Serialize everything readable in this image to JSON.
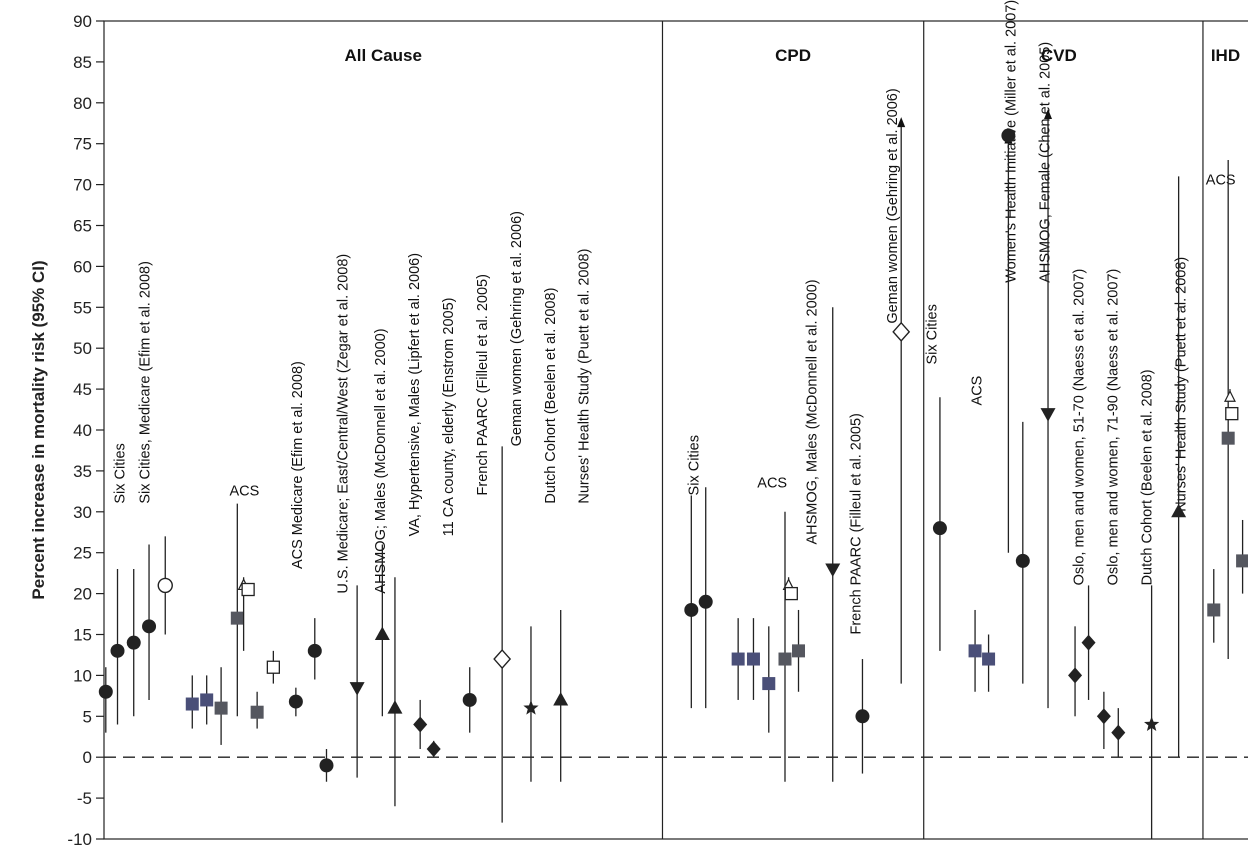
{
  "chart_data": {
    "type": "scatter",
    "title": "",
    "xlabel": "",
    "ylabel": "Percent increase in mortality risk (95% CI)",
    "ylim": [
      -10,
      90
    ],
    "yticks": [
      90,
      85,
      80,
      75,
      70,
      65,
      60,
      55,
      50,
      45,
      40,
      35,
      30,
      25,
      20,
      15,
      10,
      5,
      0,
      -5,
      -10
    ],
    "ytick_labels": [
      "90",
      "85",
      "80",
      "75",
      "70",
      "65",
      "60",
      "55",
      "50",
      "45",
      "40",
      "35",
      "30",
      "25",
      "20",
      "15",
      "10",
      "5",
      "0",
      "-5",
      "-10"
    ],
    "reference_line": 0,
    "grid": false,
    "panels": [
      {
        "name": "All Cause",
        "x_start": 0,
        "x_end": 62,
        "title_x": 31
      },
      {
        "name": "CPD",
        "x_start": 62,
        "x_end": 91,
        "title_x": 76.5
      },
      {
        "name": "CVD",
        "x_start": 91,
        "x_end": 122,
        "title_x": 106
      },
      {
        "name": "IHD",
        "x_start": 122,
        "x_end": 127,
        "title_x": 124.5
      }
    ],
    "points": [
      {
        "x": 1.5,
        "y": 13,
        "lo": 4,
        "hi": 23,
        "marker": "circle"
      },
      {
        "x": 3.3,
        "y": 14,
        "lo": 5,
        "hi": 23,
        "marker": "circle"
      },
      {
        "x": 5.0,
        "y": 16,
        "lo": 7,
        "hi": 26,
        "marker": "circle"
      },
      {
        "x": 6.8,
        "y": 21,
        "lo": 15,
        "hi": 27,
        "marker": "open-circle"
      },
      {
        "x": 9.8,
        "y": 6.5,
        "lo": 3.5,
        "hi": 10,
        "marker": "square-blue"
      },
      {
        "x": 11.4,
        "y": 7,
        "lo": 4,
        "hi": 10,
        "marker": "square-blue"
      },
      {
        "x": 13.0,
        "y": 6,
        "lo": 1.5,
        "hi": 11,
        "marker": "square"
      },
      {
        "x": 14.8,
        "y": 17,
        "lo": 5,
        "hi": 31,
        "marker": "square"
      },
      {
        "x": 15.5,
        "y": 21,
        "lo": 13,
        "hi": 22,
        "marker": "open-triangle"
      },
      {
        "x": 16.0,
        "y": 20.5,
        "lo": 20.5,
        "hi": 20.5,
        "marker": "open-square"
      },
      {
        "x": 17.0,
        "y": 5.5,
        "lo": 3.5,
        "hi": 8,
        "marker": "square"
      },
      {
        "x": 18.8,
        "y": 11,
        "lo": 9,
        "hi": 13,
        "marker": "open-square"
      },
      {
        "x": 21.3,
        "y": 6.8,
        "lo": 5,
        "hi": 8.5,
        "marker": "circle"
      },
      {
        "x": 23.4,
        "y": 13,
        "lo": 9.5,
        "hi": 17,
        "marker": "circle"
      },
      {
        "x": 24.7,
        "y": -1,
        "lo": -3,
        "hi": 1,
        "marker": "circle"
      },
      {
        "x": 28.1,
        "y": 8.5,
        "lo": -2.5,
        "hi": 21,
        "marker": "triangle-down"
      },
      {
        "x": 30.9,
        "y": 15,
        "lo": 5,
        "hi": 26,
        "marker": "triangle"
      },
      {
        "x": 32.3,
        "y": 6,
        "lo": -6,
        "hi": 22,
        "marker": "triangle"
      },
      {
        "x": 35.1,
        "y": 4,
        "lo": 1,
        "hi": 7,
        "marker": "diamond"
      },
      {
        "x": 36.6,
        "y": 1,
        "lo": 0,
        "hi": 2,
        "marker": "diamond"
      },
      {
        "x": 40.6,
        "y": 7,
        "lo": 3,
        "hi": 11,
        "marker": "circle"
      },
      {
        "x": 44.2,
        "y": 12,
        "lo": -8,
        "hi": 38,
        "marker": "open-diamond"
      },
      {
        "x": 47.4,
        "y": 6,
        "lo": -3,
        "hi": 16,
        "marker": "star"
      },
      {
        "x": 50.7,
        "y": 7,
        "lo": -3,
        "hi": 18,
        "marker": "triangle"
      },
      {
        "x": 65.2,
        "y": 18,
        "lo": 6,
        "hi": 32,
        "marker": "circle"
      },
      {
        "x": 66.8,
        "y": 19,
        "lo": 6,
        "hi": 33,
        "marker": "circle"
      },
      {
        "x": 70.4,
        "y": 12,
        "lo": 7,
        "hi": 17,
        "marker": "square-blue"
      },
      {
        "x": 72.1,
        "y": 12,
        "lo": 7,
        "hi": 17,
        "marker": "square-blue"
      },
      {
        "x": 73.8,
        "y": 9,
        "lo": 3,
        "hi": 16,
        "marker": "square-blue"
      },
      {
        "x": 75.6,
        "y": 12,
        "lo": -3,
        "hi": 30,
        "marker": "square"
      },
      {
        "x": 76.0,
        "y": 21,
        "lo": 20.5,
        "hi": 22,
        "marker": "open-triangle"
      },
      {
        "x": 76.3,
        "y": 20,
        "lo": 20,
        "hi": 20,
        "marker": "open-square"
      },
      {
        "x": 77.1,
        "y": 13,
        "lo": 8,
        "hi": 18,
        "marker": "square"
      },
      {
        "x": 80.9,
        "y": 23,
        "lo": -3,
        "hi": 55,
        "marker": "triangle-down"
      },
      {
        "x": 84.2,
        "y": 5,
        "lo": -2,
        "hi": 12,
        "marker": "circle"
      },
      {
        "x": 88.5,
        "y": 52,
        "lo": 9,
        "hi": 78,
        "marker": "open-diamond",
        "arrow_up": true
      },
      {
        "x": 92.8,
        "y": 28,
        "lo": 13,
        "hi": 44,
        "marker": "circle"
      },
      {
        "x": 96.7,
        "y": 13,
        "lo": 8,
        "hi": 18,
        "marker": "square-blue"
      },
      {
        "x": 98.2,
        "y": 12,
        "lo": 8,
        "hi": 15,
        "marker": "square-blue"
      },
      {
        "x": 100.4,
        "y": 76,
        "lo": 25,
        "hi": 76,
        "marker": "circle",
        "arrow_up": true
      },
      {
        "x": 102.0,
        "y": 24,
        "lo": 9,
        "hi": 41,
        "marker": "circle"
      },
      {
        "x": 104.8,
        "y": 42,
        "lo": 6,
        "hi": 79,
        "marker": "triangle-down",
        "arrow_up": true
      },
      {
        "x": 107.8,
        "y": 10,
        "lo": 5,
        "hi": 16,
        "marker": "diamond"
      },
      {
        "x": 109.3,
        "y": 14,
        "lo": 7,
        "hi": 21,
        "marker": "diamond"
      },
      {
        "x": 111.0,
        "y": 5,
        "lo": 1,
        "hi": 8,
        "marker": "diamond"
      },
      {
        "x": 112.6,
        "y": 3,
        "lo": 0,
        "hi": 6,
        "marker": "diamond"
      },
      {
        "x": 116.3,
        "y": 4,
        "lo": -10,
        "hi": 21,
        "marker": "star"
      },
      {
        "x": 119.3,
        "y": 30,
        "lo": 0,
        "hi": 71,
        "marker": "triangle"
      },
      {
        "x": 123.2,
        "y": 18,
        "lo": 14,
        "hi": 23,
        "marker": "square"
      },
      {
        "x": 124.8,
        "y": 39,
        "lo": 12,
        "hi": 73,
        "marker": "square"
      },
      {
        "x": 125.0,
        "y": 44,
        "lo": 44,
        "hi": 45,
        "marker": "open-triangle"
      },
      {
        "x": 125.2,
        "y": 42,
        "lo": 42,
        "hi": 42,
        "marker": "open-square"
      },
      {
        "x": 126.4,
        "y": 24,
        "lo": 20,
        "hi": 29,
        "marker": "square"
      },
      {
        "x": 0.2,
        "y": 8,
        "lo": 3,
        "hi": 11,
        "marker": "circle"
      }
    ],
    "study_labels": [
      {
        "text": "Six Cities",
        "x": 1.8,
        "y": 31,
        "rotate": true
      },
      {
        "text": "Six Cities, Medicare (Efim et al. 2008)",
        "x": 4.0,
        "y": 31,
        "rotate": true
      },
      {
        "text": "ACS",
        "x": 12.4,
        "y": 32,
        "rotate": false
      },
      {
        "text": "ACS Medicare (Efim et al. 2008)",
        "x": 17.5,
        "y": 23,
        "rotate": true
      },
      {
        "text": "U.S. Medicare; East/Central/West (Zegar et al. 2008)",
        "x": 21.5,
        "y": 20,
        "rotate": true
      },
      {
        "text": "AHSMOG; Males (McDonnell et al. 2000)",
        "x": 24.8,
        "y": 20,
        "rotate": true
      },
      {
        "text": "VA, Hypertensive, Males (Lipfert et al. 2006)",
        "x": 27.8,
        "y": 27,
        "rotate": true
      },
      {
        "text": "11 CA county, elderly (Enstrom 2005)",
        "x": 30.8,
        "y": 27,
        "rotate": true
      },
      {
        "text": "French PAARC (Filleul et al. 2005)",
        "x": 33.8,
        "y": 32,
        "rotate": true
      },
      {
        "text": "Geman women (Gehring et al. 2006)",
        "x": 36.8,
        "y": 38,
        "rotate": true
      },
      {
        "text": "Dutch Cohort (Beelen et al. 2008)",
        "x": 39.8,
        "y": 31,
        "rotate": true
      },
      {
        "text": "Nurses' Health Study (Puett et al. 2008)",
        "x": 42.8,
        "y": 31,
        "rotate": true
      },
      {
        "text": "Six Cities",
        "x": 52.5,
        "y": 32,
        "rotate": true
      },
      {
        "text": "ACS",
        "x": 59.0,
        "y": 33,
        "rotate": false
      },
      {
        "text": "AHSMOG, Males (McDonnell et al. 2000)",
        "x": 62.9,
        "y": 26,
        "rotate": true
      },
      {
        "text": "French PAARC (Filleul et al. 2005)",
        "x": 66.8,
        "y": 15,
        "rotate": true
      },
      {
        "text": "Geman women (Gehring et al. 2006)",
        "x": 70.0,
        "y": 53,
        "rotate": true
      },
      {
        "text": "Six Cities",
        "x": 73.5,
        "y": 48,
        "rotate": true
      },
      {
        "text": "ACS",
        "x": 77.5,
        "y": 43,
        "rotate": true
      },
      {
        "text": "Women's Health Initiative (Miller et al. 2007)",
        "x": 80.5,
        "y": 58,
        "rotate": true
      },
      {
        "text": "AHSMOG, Female (Chen et al. 2005)",
        "x": 83.5,
        "y": 58,
        "rotate": true
      },
      {
        "text": "Oslo, men and women, 51-70 (Naess et al. 2007)",
        "x": 86.5,
        "y": 21,
        "rotate": true
      },
      {
        "text": "Oslo, men and women, 71-90 (Naess et al. 2007)",
        "x": 89.5,
        "y": 21,
        "rotate": true
      },
      {
        "text": "Dutch Cohort (Beelen et al. 2008)",
        "x": 92.5,
        "y": 21,
        "rotate": true
      },
      {
        "text": "Nurses' Health Study (Puett et al. 2008)",
        "x": 95.5,
        "y": 30,
        "rotate": true
      },
      {
        "text": "ACS",
        "x": 98.6,
        "y": 70,
        "rotate": false
      }
    ]
  }
}
